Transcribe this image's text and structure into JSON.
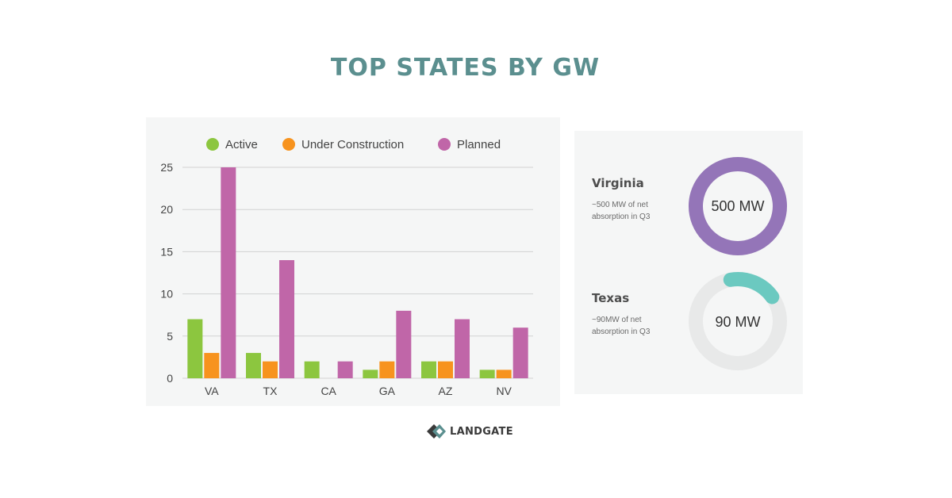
{
  "title": "TOP STATES BY GW",
  "chart_data": {
    "type": "bar",
    "categories": [
      "VA",
      "TX",
      "CA",
      "GA",
      "AZ",
      "NV"
    ],
    "series": [
      {
        "name": "Active",
        "color": "#8cc63f",
        "values": [
          7,
          3,
          2,
          1,
          2,
          1
        ]
      },
      {
        "name": "Under Construction",
        "color": "#f7931e",
        "values": [
          3,
          2,
          0,
          2,
          2,
          1
        ]
      },
      {
        "name": "Planned",
        "color": "#c066a8",
        "values": [
          25,
          14,
          2,
          8,
          7,
          6
        ]
      }
    ],
    "ylim": [
      0,
      25
    ],
    "yticks": [
      0,
      5,
      10,
      15,
      20,
      25
    ],
    "grid": true,
    "legend": "top"
  },
  "absorption": [
    {
      "state": "Virginia",
      "description": "~500 MW of net absorption in Q3",
      "value_label": "500 MW",
      "fraction": 1.0,
      "color": "#9475b8"
    },
    {
      "state": "Texas",
      "description": "~90MW of net absorption in Q3",
      "value_label": "90 MW",
      "fraction": 0.18,
      "color": "#6bc9c0"
    }
  ],
  "logo": {
    "text": "LANDGATE",
    "icon": "landgate-logo-icon"
  }
}
